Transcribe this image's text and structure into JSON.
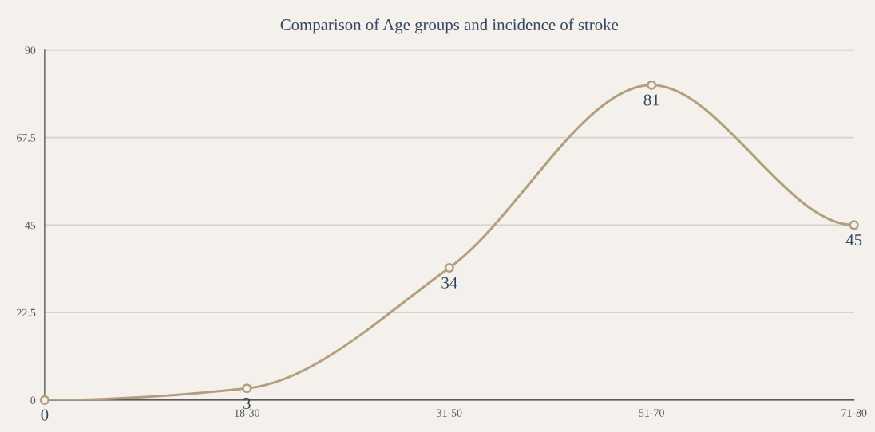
{
  "chart_data": {
    "type": "line",
    "title": "Comparison of Age groups and incidence of stroke",
    "categories": [
      null,
      "18-30",
      "31-50",
      "51-70",
      "71-80"
    ],
    "series": [
      {
        "color": "#b49e80",
        "values": [
          0,
          3,
          34,
          81,
          45
        ]
      }
    ],
    "ylim": [
      0,
      90
    ],
    "yticks": [
      0,
      22.5,
      45,
      67.5,
      90
    ],
    "grid": "y",
    "marker": "circle",
    "data_labels": true,
    "legend": false
  }
}
